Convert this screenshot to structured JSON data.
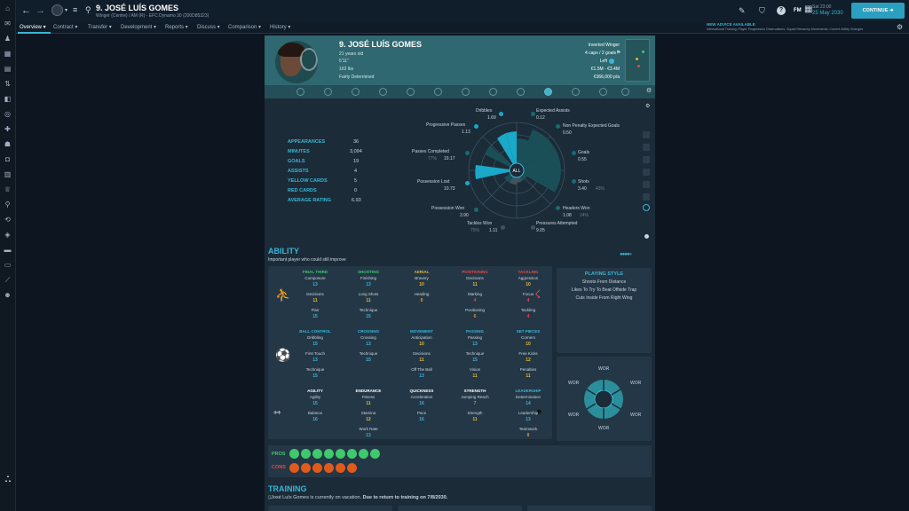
{
  "topbar": {
    "title": "9. JOSÉ LUÍS GOMES",
    "subtitle": "Winger (Centre) / AM (R) - EFC Dynamo 30 (200D85323)",
    "date_day": "Sat 23:00",
    "date": "25 May 2030",
    "continue_label": "CONTINUE",
    "fm_label": "FM",
    "advice_title": "NEW ADVICE AVAILABLE",
    "advice_text": "International Training, Player Progression Observations, Squad Hierarchy Movements, Current Ability Changes"
  },
  "subnav": {
    "tabs": [
      "Overview",
      "Contract",
      "Transfer",
      "Development",
      "Reports",
      "Discuss",
      "Comparison",
      "History"
    ]
  },
  "player": {
    "name": "9. JOSÉ LUÍS GOMES",
    "age": "21 years old",
    "height": "5'11\"",
    "weight": "163 lbs",
    "personality": "Fairly Determined",
    "role": "Inverted Winger",
    "caps": "4 caps / 2 goals",
    "foot": "Left",
    "value": "€1.5M - €3.4M",
    "wage": "€366,000 p/a"
  },
  "stats": [
    {
      "label": "APPEARANCES",
      "value": "36"
    },
    {
      "label": "MINUTES",
      "value": "3,094"
    },
    {
      "label": "GOALS",
      "value": "19"
    },
    {
      "label": "ASSISTS",
      "value": "4"
    },
    {
      "label": "YELLOW CARDS",
      "value": "5"
    },
    {
      "label": "RED CARDS",
      "value": "0"
    },
    {
      "label": "AVERAGE RATING",
      "value": "6.93"
    }
  ],
  "radar": {
    "center_label": "ALL",
    "items": [
      {
        "label": "Dribbles",
        "value": "1.69",
        "pct": ""
      },
      {
        "label": "Expected Assists",
        "value": "0.12",
        "pct": ""
      },
      {
        "label": "Non Penalty Expected Goals",
        "value": "0.50",
        "pct": ""
      },
      {
        "label": "Goals",
        "value": "0.55",
        "pct": ""
      },
      {
        "label": "Shots",
        "value": "3.40",
        "pct": "43%"
      },
      {
        "label": "Headers Won",
        "value": "1.08",
        "pct": "14%"
      },
      {
        "label": "Pressures Attempted",
        "value": "9.05",
        "pct": ""
      },
      {
        "label": "Tackles Won",
        "value": "1.11",
        "pct": "75%"
      },
      {
        "label": "Possession Won",
        "value": "3.90",
        "pct": ""
      },
      {
        "label": "Possession Lost",
        "value": "10.73",
        "pct": ""
      },
      {
        "label": "Passes Completed",
        "value": "19.17",
        "pct": "77%"
      },
      {
        "label": "Progressive Passes",
        "value": "1.13",
        "pct": ""
      }
    ]
  },
  "ability": {
    "title": "ABILITY",
    "subtitle": "Important player who could still improve",
    "groups": [
      {
        "title": "FINAL THIRD",
        "color": "#3ec96d",
        "attrs": [
          {
            "n": "Composure",
            "v": "13"
          },
          {
            "n": "Decisions",
            "v": "11"
          },
          {
            "n": "Flair",
            "v": "15"
          }
        ]
      },
      {
        "title": "SHOOTING",
        "color": "#3ec96d",
        "attrs": [
          {
            "n": "Finishing",
            "v": "13"
          },
          {
            "n": "Long Shots",
            "v": "11"
          },
          {
            "n": "Technique",
            "v": "15"
          }
        ]
      },
      {
        "title": "AERIAL",
        "color": "#e7b73a",
        "attrs": [
          {
            "n": "Bravery",
            "v": "10"
          },
          {
            "n": "Heading",
            "v": "8"
          }
        ]
      },
      {
        "title": "POSITIONING",
        "color": "#e54a4a",
        "attrs": [
          {
            "n": "Decisions",
            "v": "11"
          },
          {
            "n": "Marking",
            "v": "4"
          },
          {
            "n": "Positioning",
            "v": "6"
          }
        ]
      },
      {
        "title": "TACKLING",
        "color": "#e54a4a",
        "attrs": [
          {
            "n": "Aggression",
            "v": "10"
          },
          {
            "n": "Focus",
            "v": "4"
          },
          {
            "n": "Tackling",
            "v": "4"
          }
        ]
      },
      {
        "title": "BALL CONTROL",
        "color": "#38b6d8",
        "attrs": [
          {
            "n": "Dribbling",
            "v": "15"
          },
          {
            "n": "First Touch",
            "v": "13"
          },
          {
            "n": "Technique",
            "v": "15"
          }
        ]
      },
      {
        "title": "CROSSING",
        "color": "#38b6d8",
        "attrs": [
          {
            "n": "Crossing",
            "v": "13"
          },
          {
            "n": "Technique",
            "v": "15"
          }
        ]
      },
      {
        "title": "MOVEMENT",
        "color": "#38b6d8",
        "attrs": [
          {
            "n": "Anticipation",
            "v": "10"
          },
          {
            "n": "Decisions",
            "v": "11"
          },
          {
            "n": "Off The Ball",
            "v": "13"
          }
        ]
      },
      {
        "title": "PASSING",
        "color": "#38b6d8",
        "attrs": [
          {
            "n": "Passing",
            "v": "13"
          },
          {
            "n": "Technique",
            "v": "15"
          },
          {
            "n": "Vision",
            "v": "11"
          }
        ]
      },
      {
        "title": "SET PIECES",
        "color": "#38b6d8",
        "attrs": [
          {
            "n": "Corners",
            "v": "10"
          },
          {
            "n": "Free Kicks",
            "v": "12"
          },
          {
            "n": "Penalties",
            "v": "11"
          }
        ]
      },
      {
        "title": "AGILITY",
        "color": "#ffffff",
        "attrs": [
          {
            "n": "Agility",
            "v": "15"
          },
          {
            "n": "Balance",
            "v": "16"
          }
        ]
      },
      {
        "title": "ENDURANCE",
        "color": "#ffffff",
        "attrs": [
          {
            "n": "Fitness",
            "v": "11"
          },
          {
            "n": "Stamina",
            "v": "12"
          },
          {
            "n": "Work Rate",
            "v": "13"
          }
        ]
      },
      {
        "title": "QUICKNESS",
        "color": "#ffffff",
        "attrs": [
          {
            "n": "Acceleration",
            "v": "16"
          },
          {
            "n": "Pace",
            "v": "16"
          }
        ]
      },
      {
        "title": "STRENGTH",
        "color": "#ffffff",
        "attrs": [
          {
            "n": "Jumping Reach",
            "v": "7"
          },
          {
            "n": "Strength",
            "v": "11"
          }
        ]
      },
      {
        "title": "LEADERSHIP",
        "color": "#38b6d8",
        "attrs": [
          {
            "n": "Determination",
            "v": "14"
          },
          {
            "n": "Leadership",
            "v": "13"
          },
          {
            "n": "Teamwork",
            "v": "8"
          }
        ]
      }
    ]
  },
  "playing_style": {
    "title": "PLAYING STYLE",
    "items": [
      "Shoots From Distance",
      "Likes To Try To Beat Offside Trap",
      "Cuts Inside From Right Wing"
    ]
  },
  "compass": {
    "labels": [
      "WOR",
      "WOR",
      "WOR",
      "WOR",
      "WOR",
      "WOR"
    ]
  },
  "pros_label": "PROS",
  "cons_label": "CONS",
  "training": {
    "title": "TRAINING",
    "text": "José Luís Gomes is currently on vacation.",
    "bold": "Due to return to training on 7/8/2030."
  },
  "colors": {
    "accent": "#38b6d8",
    "header": "#2f6870",
    "green": "#3ec96d",
    "red": "#e54a4a",
    "gold": "#e7b73a"
  }
}
